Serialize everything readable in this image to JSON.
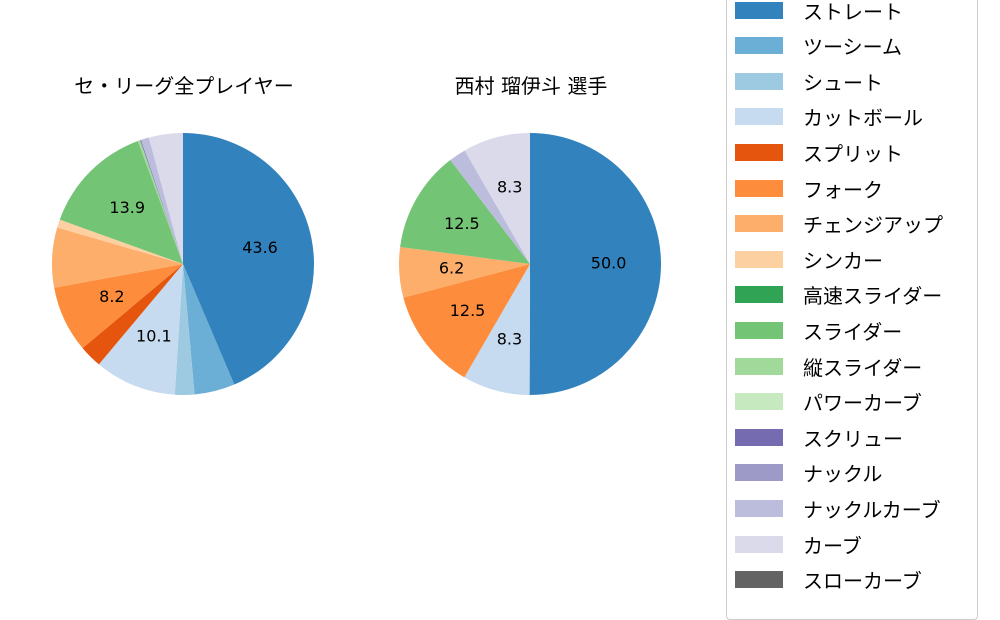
{
  "chart_data": [
    {
      "type": "pie",
      "title": "セ・リーグ全プレイヤー",
      "start_angle": 90,
      "direction": "clockwise",
      "categories": [
        "ストレート",
        "ツーシーム",
        "シュート",
        "カットボール",
        "スプリット",
        "フォーク",
        "チェンジアップ",
        "シンカー",
        "高速スライダー",
        "スライダー",
        "縦スライダー",
        "パワーカーブ",
        "スクリュー",
        "ナックル",
        "ナックルカーブ",
        "カーブ",
        "スローカーブ"
      ],
      "values": [
        43.6,
        5.0,
        2.4,
        10.1,
        2.8,
        8.2,
        7.4,
        1.0,
        0.0,
        13.9,
        0.3,
        0.0,
        0.1,
        0.0,
        1.0,
        4.2,
        0.0
      ],
      "labels_shown": {
        "ストレート": "43.6",
        "カットボール": "10.1",
        "フォーク": "8.2",
        "スライダー": "13.9"
      }
    },
    {
      "type": "pie",
      "title": "西村 瑠伊斗  選手",
      "start_angle": 90,
      "direction": "clockwise",
      "categories": [
        "ストレート",
        "カットボール",
        "フォーク",
        "チェンジアップ",
        "スライダー",
        "ナックルカーブ",
        "カーブ"
      ],
      "values": [
        50.0,
        8.3,
        12.5,
        6.2,
        12.5,
        2.1,
        8.3
      ],
      "labels_shown": {
        "ストレート": "50.0",
        "カットボール": "8.3",
        "フォーク": "12.5",
        "チェンジアップ": "6.2",
        "スライダー": "12.5",
        "カーブ": "8.3"
      }
    }
  ],
  "legend": {
    "items": [
      {
        "label": "ストレート",
        "color": "#3182bd"
      },
      {
        "label": "ツーシーム",
        "color": "#6baed6"
      },
      {
        "label": "シュート",
        "color": "#9ecae1"
      },
      {
        "label": "カットボール",
        "color": "#c6dbef"
      },
      {
        "label": "スプリット",
        "color": "#e6550d"
      },
      {
        "label": "フォーク",
        "color": "#fd8d3c"
      },
      {
        "label": "チェンジアップ",
        "color": "#fdae6b"
      },
      {
        "label": "シンカー",
        "color": "#fdd0a2"
      },
      {
        "label": "高速スライダー",
        "color": "#31a354"
      },
      {
        "label": "スライダー",
        "color": "#74c476"
      },
      {
        "label": "縦スライダー",
        "color": "#a1d99b"
      },
      {
        "label": "パワーカーブ",
        "color": "#c7e9c0"
      },
      {
        "label": "スクリュー",
        "color": "#756bb1"
      },
      {
        "label": "ナックル",
        "color": "#9e9ac8"
      },
      {
        "label": "ナックルカーブ",
        "color": "#bcbddc"
      },
      {
        "label": "カーブ",
        "color": "#dadaeb"
      },
      {
        "label": "スローカーブ",
        "color": "#636363"
      }
    ]
  },
  "titles": {
    "left": "セ・リーグ全プレイヤー",
    "right": "西村 瑠伊斗  選手"
  }
}
